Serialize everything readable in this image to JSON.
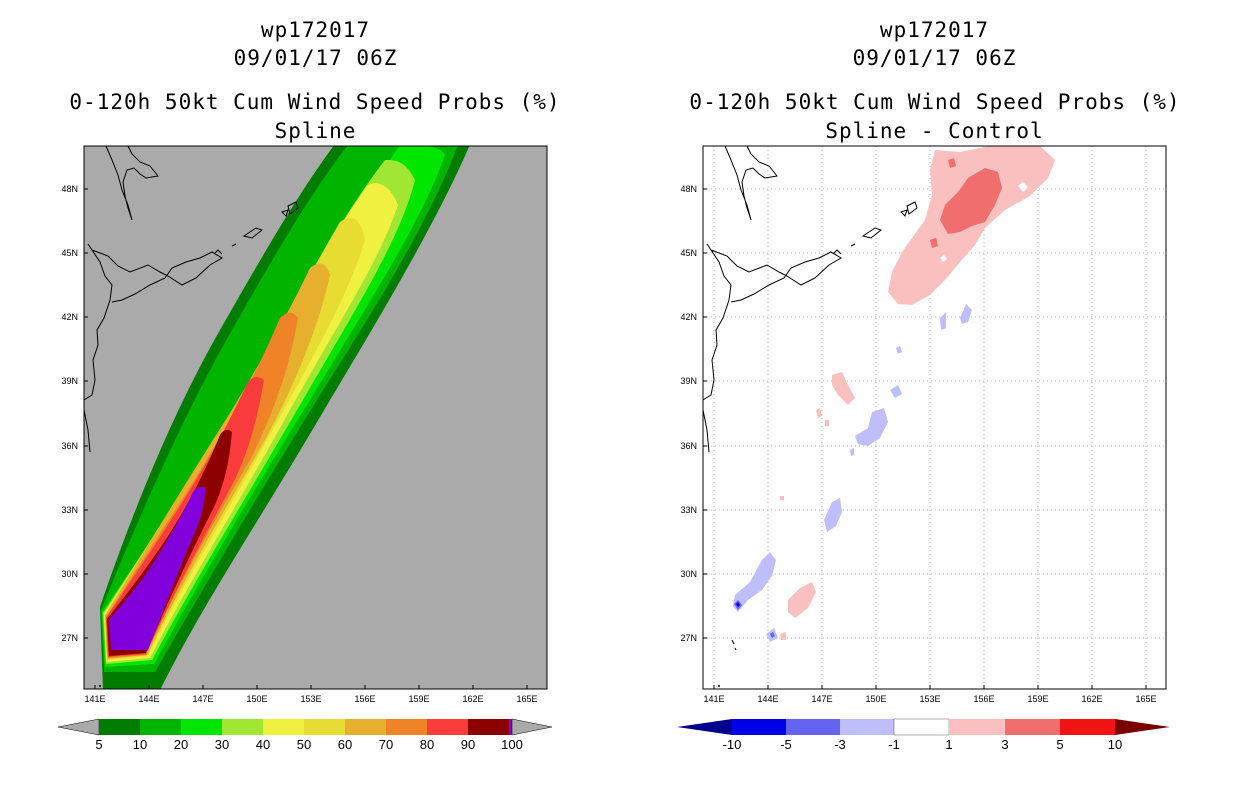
{
  "chart_data": [
    {
      "type": "contour-map",
      "storm_id": "wp172017",
      "date": "09/01/17 06Z",
      "title": "0-120h 50kt Cum Wind Speed Probs (%)",
      "subtitle": "Spline",
      "xticks": [
        "141E",
        "144E",
        "147E",
        "150E",
        "153E",
        "156E",
        "159E",
        "162E",
        "165E"
      ],
      "yticks": [
        "48N",
        "45N",
        "42N",
        "39N",
        "36N",
        "33N",
        "30N",
        "27N"
      ],
      "lon_range": [
        140.8,
        166.5
      ],
      "lat_range": [
        24.7,
        49.8
      ],
      "grid": false,
      "background_color": "#aaaaaa",
      "colorbar_labels": [
        "5",
        "10",
        "20",
        "30",
        "40",
        "50",
        "60",
        "70",
        "80",
        "90",
        "100"
      ],
      "colorbar_colors": [
        "#007d00",
        "#00b400",
        "#00e600",
        "#a0e632",
        "#f0f040",
        "#e6dc32",
        "#e6af2d",
        "#f08228",
        "#fa3c3c",
        "#8c0000",
        "#8200dc"
      ]
    },
    {
      "type": "contour-map",
      "storm_id": "wp172017",
      "date": "09/01/17 06Z",
      "title": "0-120h 50kt Cum Wind Speed Probs (%)",
      "subtitle": "Spline - Control",
      "xticks": [
        "141E",
        "144E",
        "147E",
        "150E",
        "153E",
        "156E",
        "159E",
        "162E",
        "165E"
      ],
      "yticks": [
        "48N",
        "45N",
        "42N",
        "39N",
        "36N",
        "33N",
        "30N",
        "27N"
      ],
      "lon_range": [
        140.8,
        166.5
      ],
      "lat_range": [
        24.7,
        49.8
      ],
      "grid": true,
      "background_color": "#ffffff",
      "colorbar_labels": [
        "-10",
        "-5",
        "-3",
        "-1",
        "1",
        "3",
        "5",
        "10"
      ],
      "colorbar_colors": [
        "#00008c",
        "#0000e6",
        "#6464f0",
        "#bebefa",
        "#ffffff",
        "#fac0c0",
        "#f06e6e",
        "#f01414",
        "#780000"
      ]
    }
  ]
}
